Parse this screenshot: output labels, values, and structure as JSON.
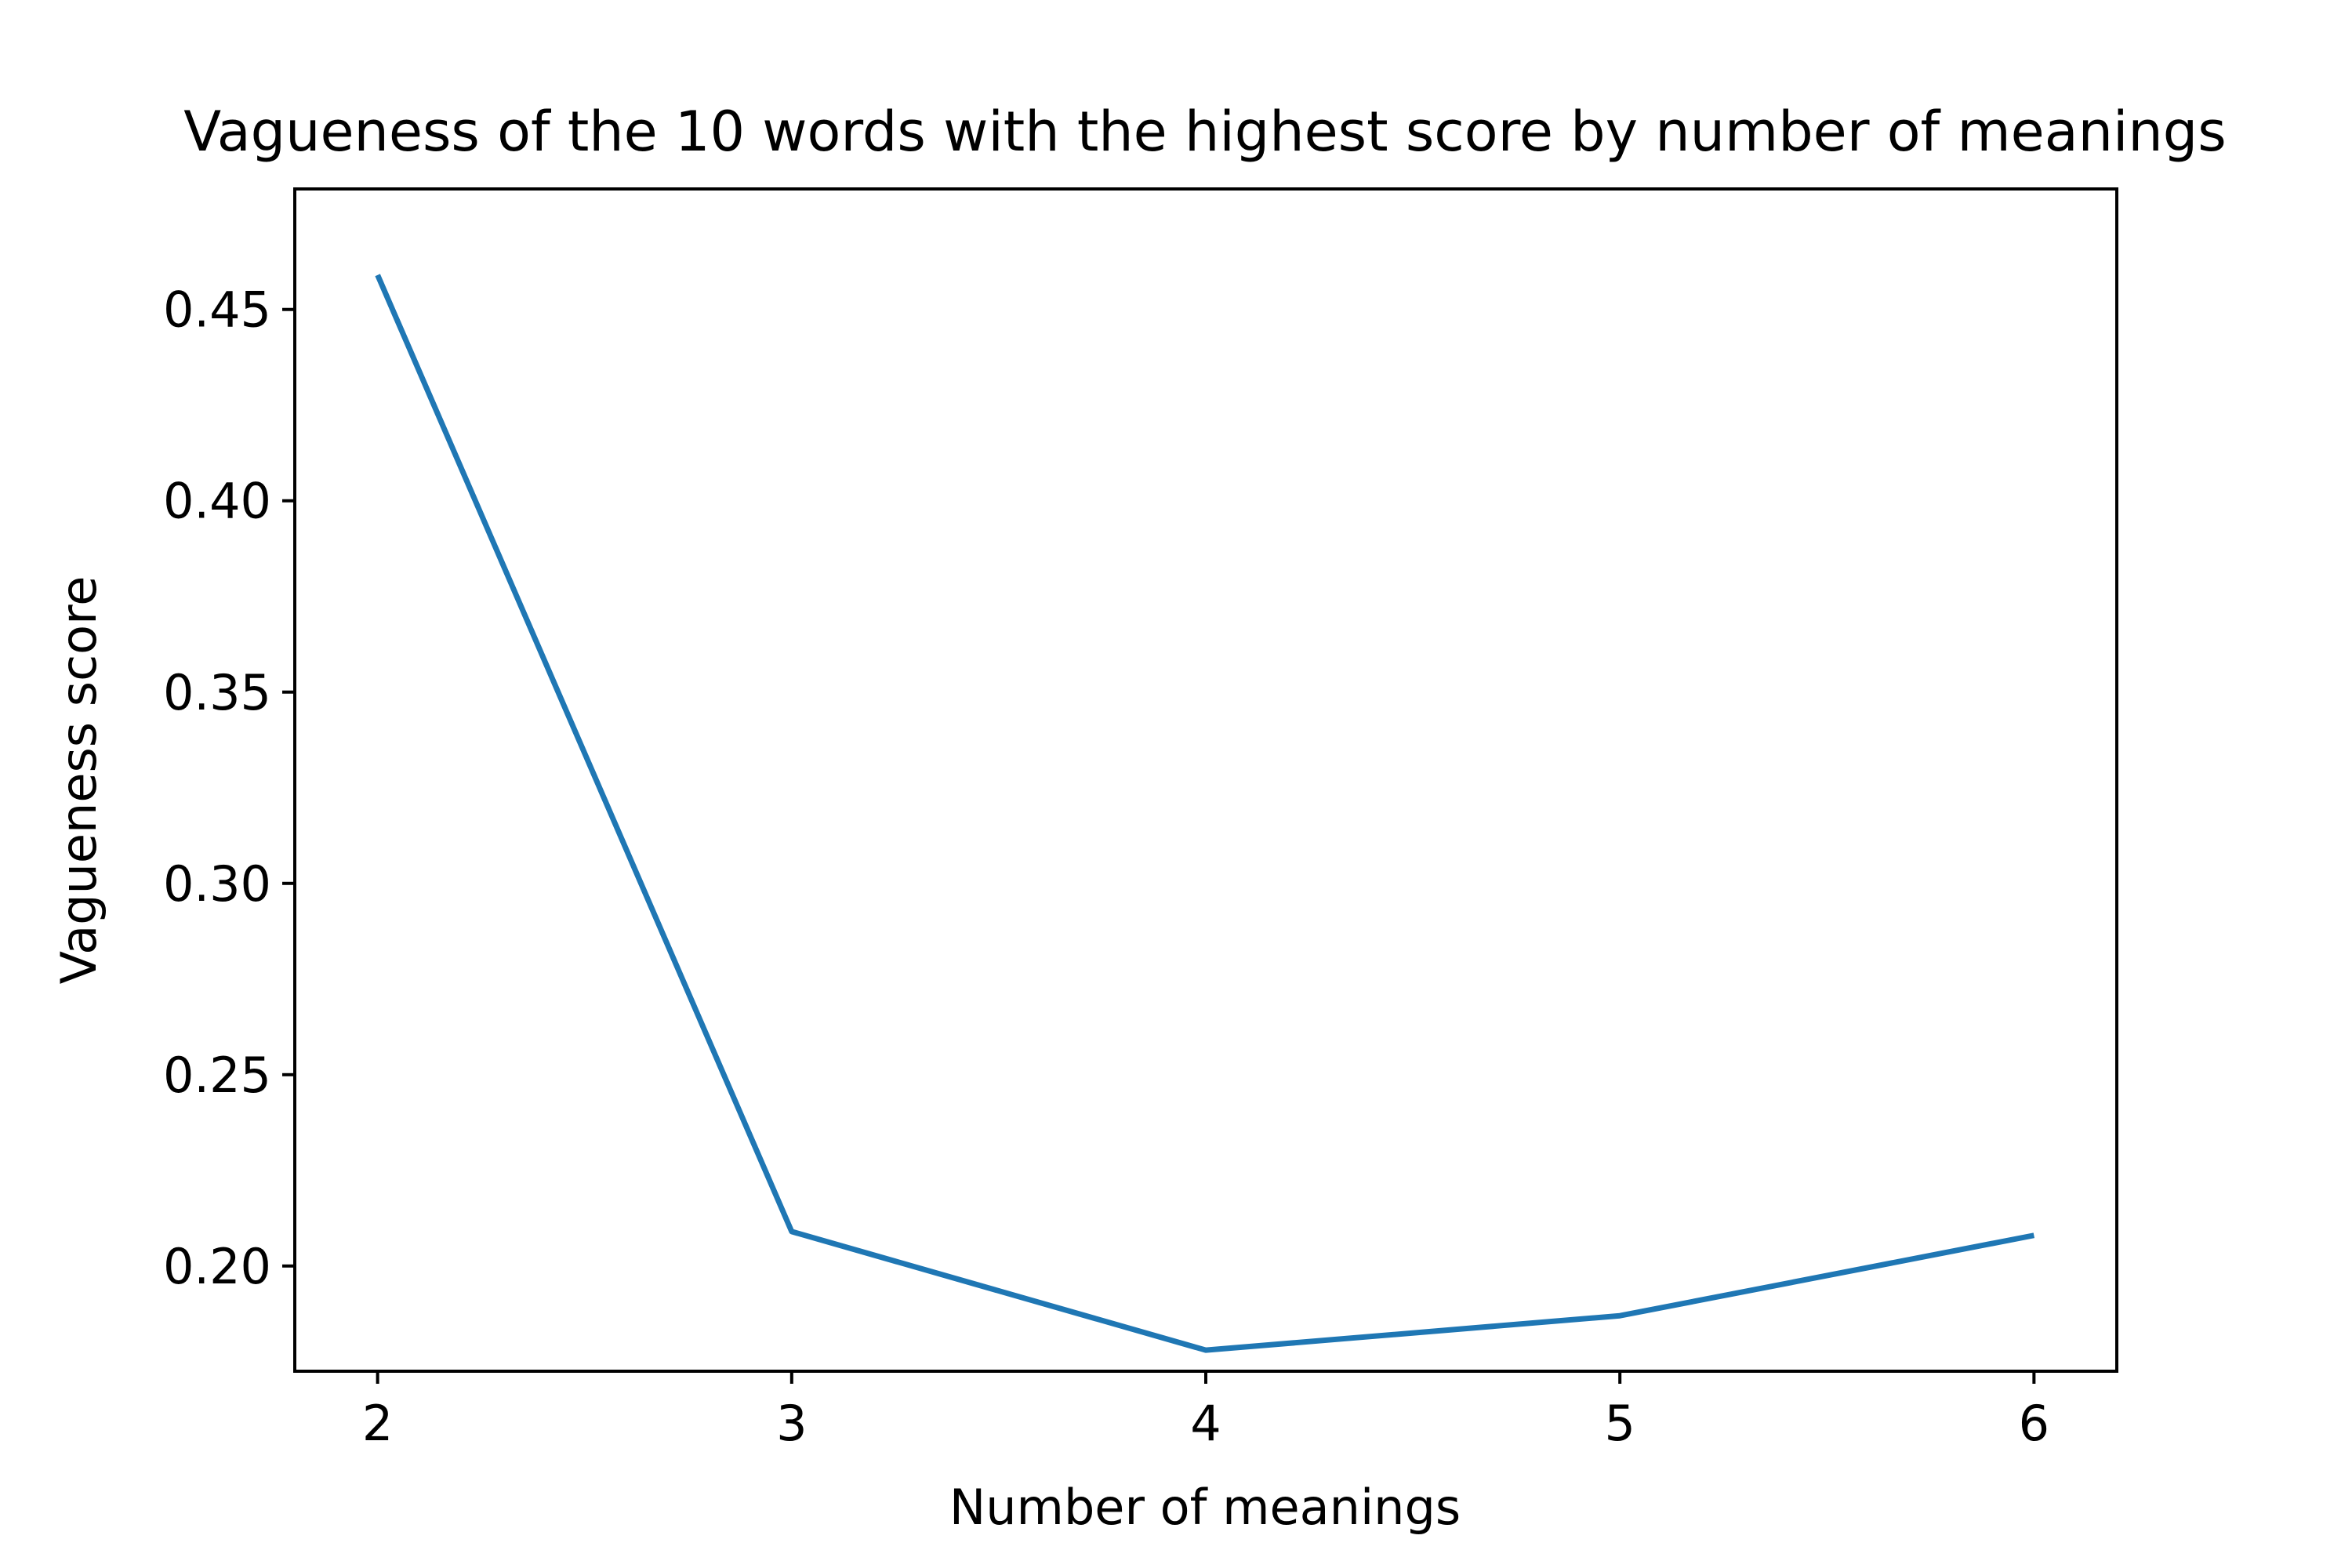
{
  "chart_data": {
    "type": "line",
    "title": "Vagueness of the 10 words with the highest score by number of meanings",
    "xlabel": "Number of meanings",
    "ylabel": "Vagueness score",
    "x": [
      2,
      3,
      4,
      5,
      6
    ],
    "series": [
      {
        "values": [
          0.459,
          0.209,
          0.178,
          0.187,
          0.208
        ]
      }
    ],
    "xlim": [
      1.8,
      6.2
    ],
    "ylim": [
      0.1725,
      0.4815
    ],
    "xticks": [
      "2",
      "3",
      "4",
      "5",
      "6"
    ],
    "yticks": [
      "0.20",
      "0.25",
      "0.30",
      "0.35",
      "0.40",
      "0.45"
    ],
    "ytick_values": [
      0.2,
      0.25,
      0.3,
      0.35,
      0.4,
      0.45
    ],
    "grid": false,
    "line_color": "#1f77b4"
  }
}
